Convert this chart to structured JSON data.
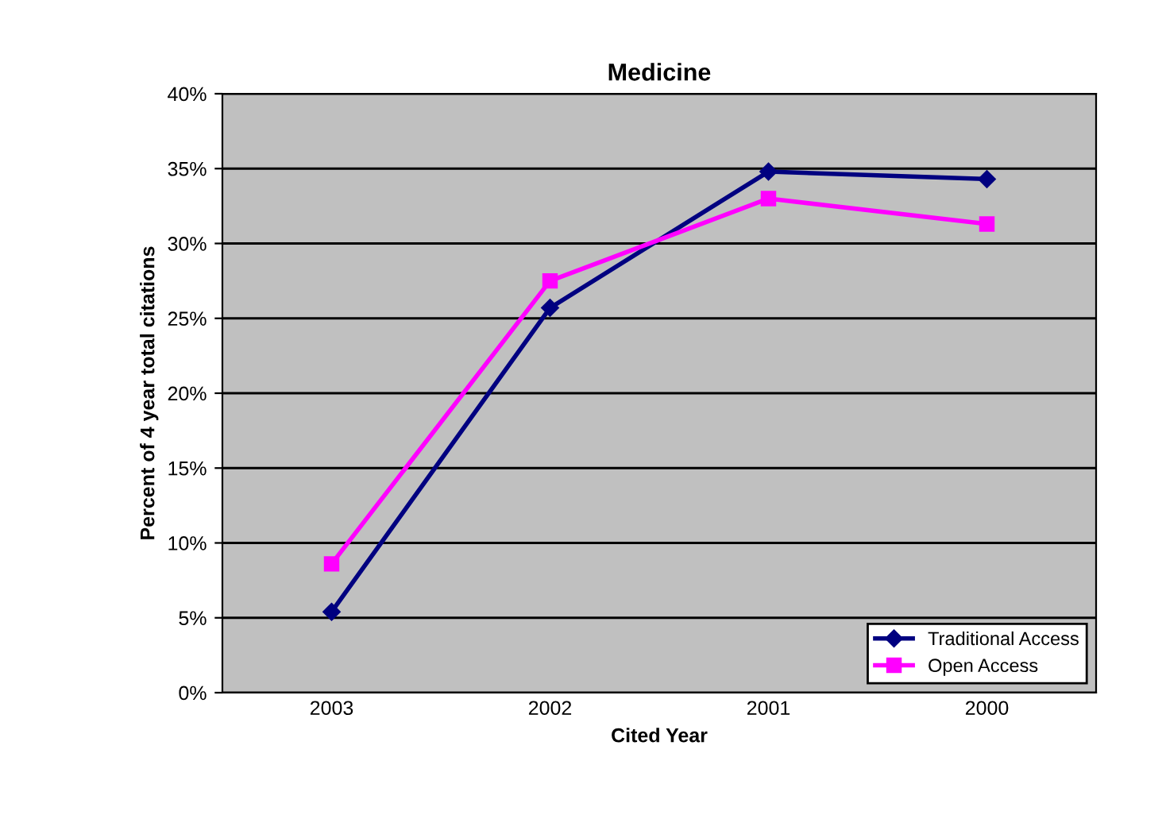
{
  "chart_data": {
    "type": "line",
    "title": "Medicine",
    "xlabel": "Cited Year",
    "ylabel": "Percent of 4 year total citations",
    "categories": [
      "2003",
      "2002",
      "2001",
      "2000"
    ],
    "series": [
      {
        "name": "Traditional Access",
        "color": "#000080",
        "marker": "diamond",
        "values": [
          5.4,
          25.7,
          34.8,
          34.3
        ]
      },
      {
        "name": "Open Access",
        "color": "#ff00ff",
        "marker": "square",
        "values": [
          8.6,
          27.5,
          33.0,
          31.3
        ]
      }
    ],
    "ylim": [
      0,
      40
    ],
    "yticks": [
      {
        "value": 0,
        "label": "0%"
      },
      {
        "value": 5,
        "label": "5%"
      },
      {
        "value": 10,
        "label": "10%"
      },
      {
        "value": 15,
        "label": "15%"
      },
      {
        "value": 20,
        "label": "20%"
      },
      {
        "value": 25,
        "label": "25%"
      },
      {
        "value": 30,
        "label": "30%"
      },
      {
        "value": 35,
        "label": "35%"
      },
      {
        "value": 40,
        "label": "40%"
      }
    ],
    "grid": "y",
    "legend": "bottom right",
    "line_style": "solid"
  }
}
